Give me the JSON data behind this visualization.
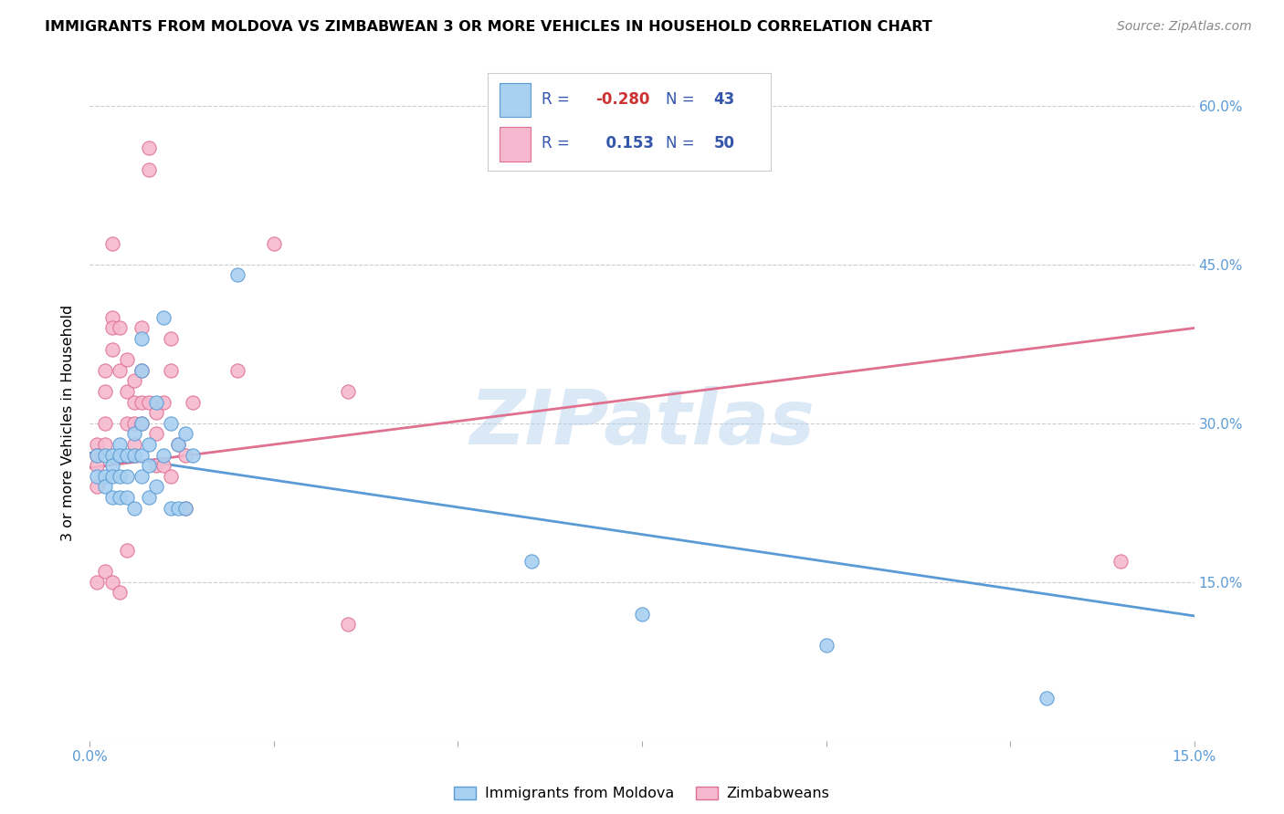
{
  "title": "IMMIGRANTS FROM MOLDOVA VS ZIMBABWEAN 3 OR MORE VEHICLES IN HOUSEHOLD CORRELATION CHART",
  "source": "Source: ZipAtlas.com",
  "ylabel": "3 or more Vehicles in Household",
  "xmin": 0.0,
  "xmax": 0.15,
  "ymin": 0.0,
  "ymax": 0.6,
  "ytick_values": [
    0.0,
    0.15,
    0.3,
    0.45,
    0.6
  ],
  "ytick_labels_right": [
    "15.0%",
    "30.0%",
    "45.0%",
    "60.0%"
  ],
  "ytick_values_right": [
    0.15,
    0.3,
    0.45,
    0.6
  ],
  "xtick_positions": [
    0.0,
    0.025,
    0.05,
    0.075,
    0.1,
    0.125,
    0.15
  ],
  "legend_label_blue": "Immigrants from Moldova",
  "legend_label_pink": "Zimbabweans",
  "blue_color": "#A8D0F0",
  "pink_color": "#F5B8CE",
  "blue_line_color": "#5B9BD5",
  "pink_line_color": "#E07090",
  "watermark": "ZIPatlas",
  "blue_line_x0": 0.0,
  "blue_line_y0": 0.272,
  "blue_line_x1": 0.15,
  "blue_line_y1": 0.118,
  "pink_line_x0": 0.0,
  "pink_line_y0": 0.258,
  "pink_line_x1": 0.15,
  "pink_line_y1": 0.39,
  "blue_x": [
    0.001,
    0.001,
    0.002,
    0.002,
    0.002,
    0.003,
    0.003,
    0.003,
    0.003,
    0.004,
    0.004,
    0.004,
    0.004,
    0.005,
    0.005,
    0.005,
    0.006,
    0.006,
    0.006,
    0.007,
    0.007,
    0.007,
    0.007,
    0.007,
    0.008,
    0.008,
    0.008,
    0.009,
    0.009,
    0.01,
    0.01,
    0.011,
    0.011,
    0.012,
    0.012,
    0.013,
    0.013,
    0.014,
    0.02,
    0.06,
    0.075,
    0.1,
    0.13
  ],
  "blue_y": [
    0.27,
    0.25,
    0.27,
    0.25,
    0.24,
    0.27,
    0.26,
    0.25,
    0.23,
    0.28,
    0.27,
    0.25,
    0.23,
    0.27,
    0.25,
    0.23,
    0.29,
    0.27,
    0.22,
    0.38,
    0.35,
    0.3,
    0.27,
    0.25,
    0.28,
    0.26,
    0.23,
    0.32,
    0.24,
    0.4,
    0.27,
    0.3,
    0.22,
    0.28,
    0.22,
    0.29,
    0.22,
    0.27,
    0.44,
    0.17,
    0.12,
    0.09,
    0.04
  ],
  "pink_x": [
    0.001,
    0.001,
    0.001,
    0.001,
    0.001,
    0.002,
    0.002,
    0.002,
    0.002,
    0.002,
    0.003,
    0.003,
    0.003,
    0.003,
    0.003,
    0.004,
    0.004,
    0.004,
    0.005,
    0.005,
    0.005,
    0.005,
    0.006,
    0.006,
    0.006,
    0.006,
    0.007,
    0.007,
    0.007,
    0.007,
    0.008,
    0.008,
    0.008,
    0.009,
    0.009,
    0.009,
    0.01,
    0.01,
    0.011,
    0.011,
    0.011,
    0.012,
    0.013,
    0.013,
    0.014,
    0.02,
    0.025,
    0.035,
    0.035,
    0.14
  ],
  "pink_y": [
    0.28,
    0.27,
    0.26,
    0.24,
    0.15,
    0.35,
    0.33,
    0.3,
    0.28,
    0.16,
    0.47,
    0.4,
    0.39,
    0.37,
    0.15,
    0.39,
    0.35,
    0.14,
    0.36,
    0.33,
    0.3,
    0.18,
    0.34,
    0.32,
    0.3,
    0.28,
    0.39,
    0.35,
    0.32,
    0.3,
    0.54,
    0.56,
    0.32,
    0.31,
    0.29,
    0.26,
    0.32,
    0.26,
    0.38,
    0.35,
    0.25,
    0.28,
    0.27,
    0.22,
    0.32,
    0.35,
    0.47,
    0.33,
    0.11,
    0.17
  ],
  "background_color": "#FFFFFF",
  "grid_color": "#CCCCCC"
}
